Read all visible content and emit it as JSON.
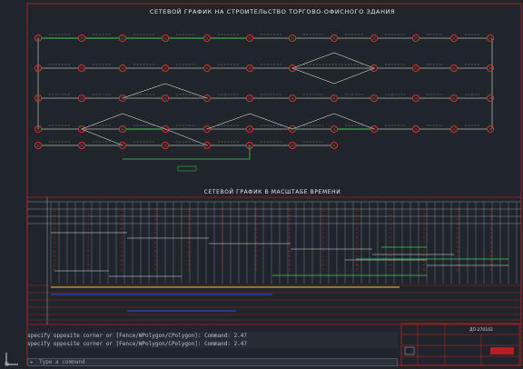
{
  "drawing": {
    "title_top": "СЕТЕВОЙ ГРАФИК НА СТРОИТЕЛЬСТВО ТОРГОВО-ОФИСНОГО ЗДАНИЯ",
    "title_bottom": "СЕТЕВОЙ ГРАФИК В МАСШТАБЕ ВРЕМЕНИ",
    "node_color": "#c0392b",
    "activity_color": "#ffffff",
    "critical_color": "#39d353",
    "frame_color": "#d41f1f",
    "bar_blue": "#3b4bd9",
    "bar_yellow": "#e6d43a"
  },
  "command_line": {
    "line1": "specify opposite corner or [Fence/WPolygon/CPolygon]:  Command: 2.47",
    "line2": "specify opposite corner or [Fence/WPolygon/CPolygon]:  Command: 2.47",
    "prompt": "Type a command",
    "prompt_icon": "command-prompt-icon"
  },
  "ucs": {
    "icon": "ucs-icon"
  },
  "stamp": {
    "label": "ДП-270102"
  }
}
